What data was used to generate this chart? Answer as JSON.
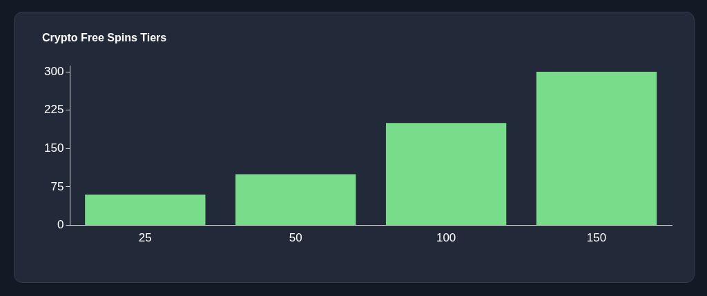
{
  "chart_data": {
    "type": "bar",
    "title": "Crypto Free Spins Tiers",
    "categories": [
      "25",
      "50",
      "100",
      "150"
    ],
    "values": [
      60,
      100,
      200,
      300
    ],
    "color": "#79dc8a",
    "ylim": [
      0,
      312
    ],
    "yticks": [
      0,
      75,
      150,
      225,
      300
    ],
    "grid": false,
    "legend": false
  }
}
